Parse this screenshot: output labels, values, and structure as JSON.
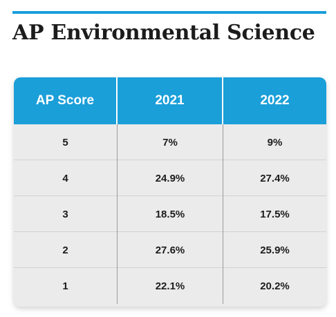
{
  "title": {
    "bold": "AP",
    "rest": " Environmental Science"
  },
  "chart_data": {
    "type": "table",
    "title": "AP Environmental Science",
    "columns": [
      "AP Score",
      "2021",
      "2022"
    ],
    "rows": [
      [
        "5",
        "7%",
        "9%"
      ],
      [
        "4",
        "24.9%",
        "27.4%"
      ],
      [
        "3",
        "18.5%",
        "17.5%"
      ],
      [
        "2",
        "27.6%",
        "25.9%"
      ],
      [
        "1",
        "22.1%",
        "20.2%"
      ]
    ]
  },
  "colors": {
    "accent": "#1a9fd9",
    "row_bg": "#ebebeb",
    "text": "#1c1c1c"
  }
}
